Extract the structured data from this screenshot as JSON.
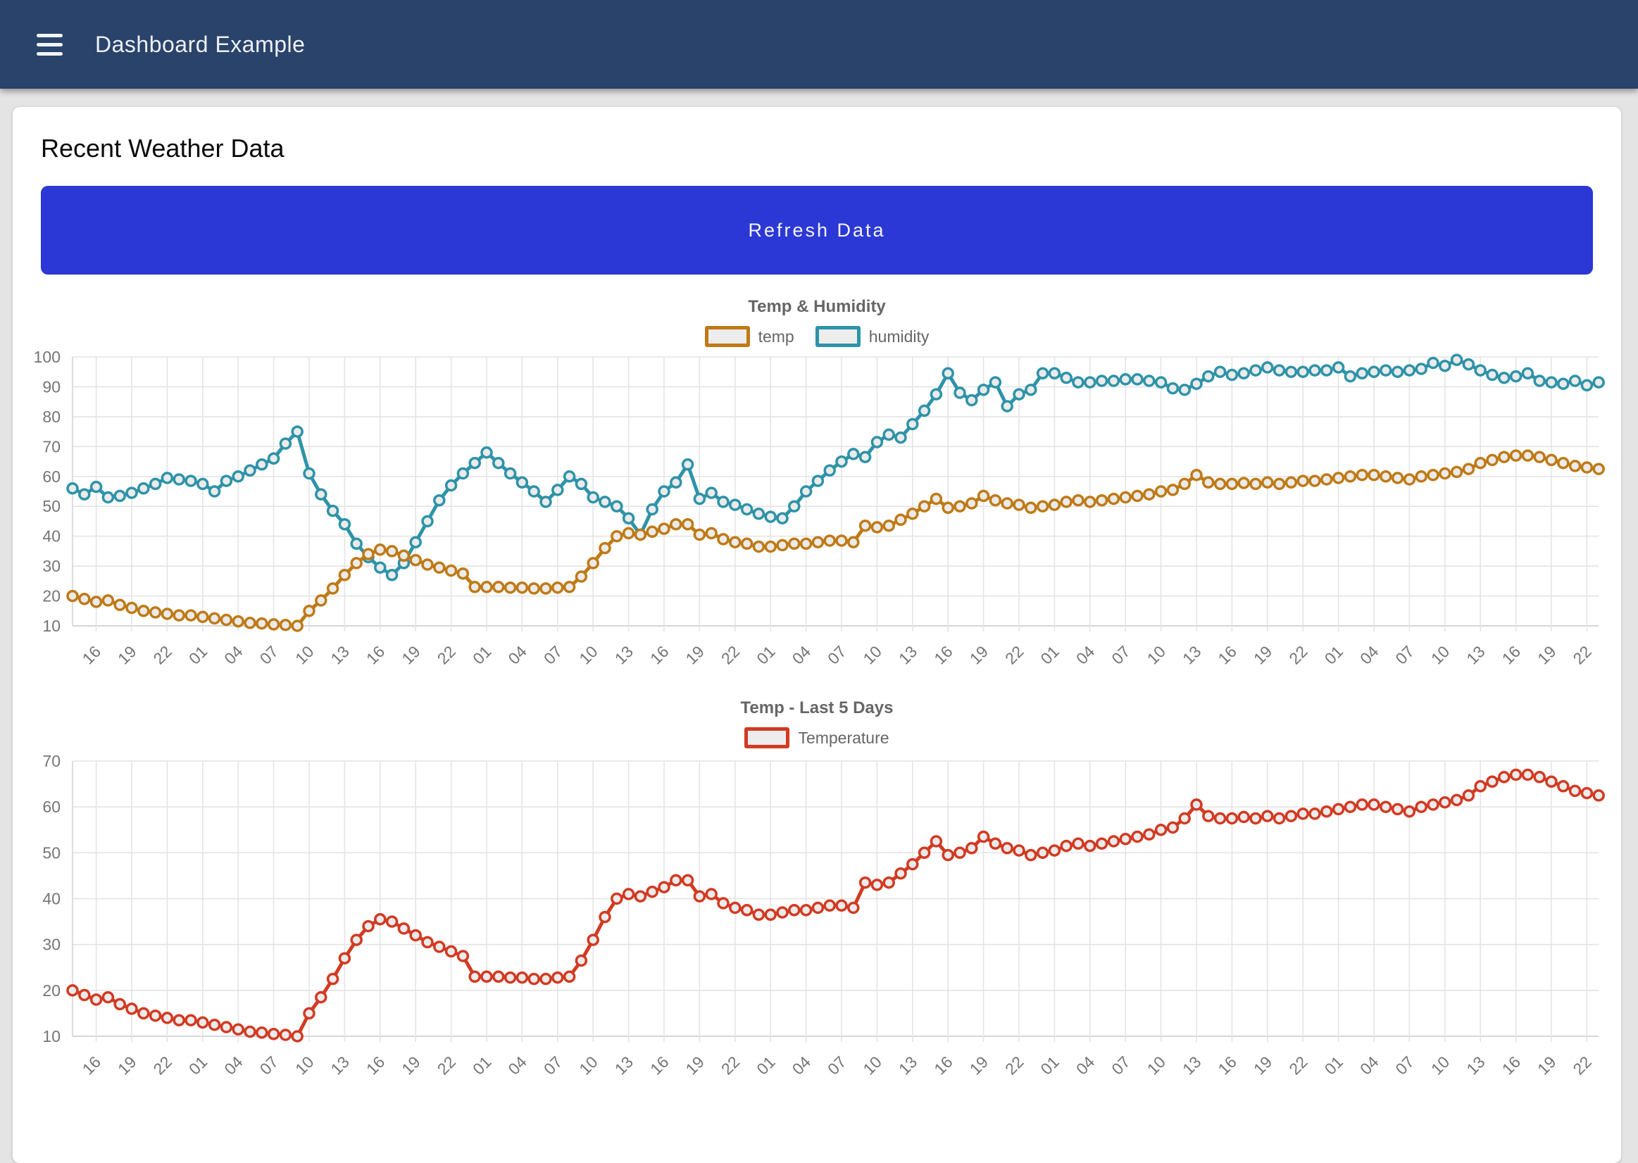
{
  "header": {
    "title": "Dashboard Example",
    "menu_icon": "hamburger-menu"
  },
  "main": {
    "heading": "Recent Weather Data",
    "refresh_button_label": "Refresh Data"
  },
  "colors": {
    "header_bg": "#2A436A",
    "page_bg": "#E4E4E4",
    "button_bg": "#2B38D5",
    "temp_series": "#BF7A16",
    "humidity_series": "#2E93A8",
    "temperature_series": "#D23A22",
    "grid": "#E4E4E4",
    "axis_text": "#757575",
    "title_text": "#666666",
    "point_fill": "#EBEBEB"
  },
  "chart_data": [
    {
      "type": "line",
      "title": "Temp & Humidity",
      "legend_position": "top",
      "grid": true,
      "ylim": [
        10,
        100
      ],
      "yticks": [
        10,
        20,
        30,
        40,
        50,
        60,
        70,
        80,
        90,
        100
      ],
      "xtick_every": 3,
      "xtick_start_index": 2,
      "categories": [
        "14",
        "15",
        "16",
        "17",
        "18",
        "19",
        "20",
        "21",
        "22",
        "23",
        "00",
        "01",
        "02",
        "03",
        "04",
        "05",
        "06",
        "07",
        "08",
        "09",
        "10",
        "11",
        "12",
        "13",
        "14",
        "15",
        "16",
        "17",
        "18",
        "19",
        "20",
        "21",
        "22",
        "23",
        "00",
        "01",
        "02",
        "03",
        "04",
        "05",
        "06",
        "07",
        "08",
        "09",
        "10",
        "11",
        "12",
        "13",
        "14",
        "15",
        "16",
        "17",
        "18",
        "19",
        "20",
        "21",
        "22",
        "23",
        "00",
        "01",
        "02",
        "03",
        "04",
        "05",
        "06",
        "07",
        "08",
        "09",
        "10",
        "11",
        "12",
        "13",
        "14",
        "15",
        "16",
        "17",
        "18",
        "19",
        "20",
        "21",
        "22",
        "23",
        "00",
        "01",
        "02",
        "03",
        "04",
        "05",
        "06",
        "07",
        "08",
        "09",
        "10",
        "11",
        "12",
        "13",
        "14",
        "15",
        "16",
        "17",
        "18",
        "19",
        "20",
        "21",
        "22",
        "23",
        "00",
        "01",
        "02",
        "03",
        "04",
        "05",
        "06",
        "07",
        "08",
        "09",
        "10",
        "11",
        "12",
        "13",
        "14",
        "15",
        "16",
        "17",
        "18",
        "19",
        "20",
        "21",
        "22",
        "23"
      ],
      "series": [
        {
          "name": "temp",
          "color": "#BF7A16",
          "values": [
            20,
            19,
            18,
            18.5,
            17,
            16,
            15,
            14.5,
            14,
            13.5,
            13.5,
            13,
            12.5,
            12,
            11.5,
            11,
            10.8,
            10.5,
            10.3,
            10,
            15,
            18.5,
            22.5,
            27,
            31,
            34,
            35.5,
            35,
            33.5,
            32,
            30.5,
            29.5,
            28.5,
            27.5,
            23,
            23,
            23,
            22.8,
            22.8,
            22.5,
            22.5,
            22.8,
            23,
            26.5,
            31,
            36,
            40,
            41,
            40.5,
            41.5,
            42.5,
            44,
            44,
            40.5,
            41,
            39,
            38,
            37.5,
            36.5,
            36.5,
            37,
            37.5,
            37.5,
            38,
            38.5,
            38.5,
            38,
            43.5,
            43,
            43.5,
            45.5,
            47.5,
            50,
            52.5,
            49.5,
            50,
            51,
            53.5,
            52,
            51,
            50.5,
            49.5,
            50,
            50.5,
            51.5,
            52,
            51.5,
            52,
            52.5,
            53,
            53.5,
            54,
            55,
            55.5,
            57.5,
            60.5,
            58,
            57.5,
            57.5,
            57.8,
            57.5,
            58,
            57.5,
            58,
            58.5,
            58.5,
            59,
            59.5,
            60,
            60.5,
            60.5,
            60,
            59.5,
            59,
            60,
            60.5,
            61,
            61.5,
            62.5,
            64.5,
            65.5,
            66.5,
            67,
            67,
            66.5,
            65.5,
            64.5,
            63.5,
            63,
            62.5
          ]
        },
        {
          "name": "humidity",
          "color": "#2E93A8",
          "values": [
            56,
            54,
            56.5,
            53,
            53.5,
            54.5,
            56,
            57.5,
            59.5,
            59,
            58.5,
            57.5,
            55,
            58.5,
            60,
            62,
            64,
            66,
            71,
            75,
            61,
            54,
            48.5,
            44,
            37.5,
            33,
            29.5,
            27,
            31,
            38,
            45,
            52,
            57,
            61,
            64.5,
            68,
            64.5,
            61,
            58,
            55,
            51.5,
            55.5,
            60,
            57.5,
            53,
            51.5,
            50,
            46,
            40.5,
            49,
            55,
            58,
            64,
            52.5,
            54.5,
            51.5,
            50.5,
            49,
            47.5,
            46.5,
            46,
            50,
            55,
            58.5,
            62,
            65,
            67.5,
            66.5,
            71.5,
            74,
            73,
            77.5,
            82,
            87.5,
            94.5,
            88,
            85.5,
            89,
            91.5,
            83.5,
            87.5,
            89,
            94.5,
            94.5,
            93,
            91.5,
            91.5,
            92,
            92,
            92.5,
            92.5,
            92,
            91.5,
            89.5,
            89,
            91,
            93.5,
            95,
            94,
            94.5,
            95.5,
            96.5,
            95.5,
            95,
            95,
            95.5,
            95.5,
            96.5,
            93.5,
            94.5,
            95,
            95.5,
            95,
            95.5,
            96,
            98,
            97,
            99,
            97.5,
            95.5,
            94,
            93,
            93.5,
            94.5,
            92,
            91.5,
            91,
            92,
            90.5,
            91.5
          ]
        }
      ]
    },
    {
      "type": "line",
      "title": "Temp - Last 5 Days",
      "legend_position": "top",
      "grid": true,
      "ylim": [
        10,
        70
      ],
      "yticks": [
        10,
        20,
        30,
        40,
        50,
        60,
        70
      ],
      "xtick_every": 3,
      "xtick_start_index": 2,
      "categories": [
        "14",
        "15",
        "16",
        "17",
        "18",
        "19",
        "20",
        "21",
        "22",
        "23",
        "00",
        "01",
        "02",
        "03",
        "04",
        "05",
        "06",
        "07",
        "08",
        "09",
        "10",
        "11",
        "12",
        "13",
        "14",
        "15",
        "16",
        "17",
        "18",
        "19",
        "20",
        "21",
        "22",
        "23",
        "00",
        "01",
        "02",
        "03",
        "04",
        "05",
        "06",
        "07",
        "08",
        "09",
        "10",
        "11",
        "12",
        "13",
        "14",
        "15",
        "16",
        "17",
        "18",
        "19",
        "20",
        "21",
        "22",
        "23",
        "00",
        "01",
        "02",
        "03",
        "04",
        "05",
        "06",
        "07",
        "08",
        "09",
        "10",
        "11",
        "12",
        "13",
        "14",
        "15",
        "16",
        "17",
        "18",
        "19",
        "20",
        "21",
        "22",
        "23",
        "00",
        "01",
        "02",
        "03",
        "04",
        "05",
        "06",
        "07",
        "08",
        "09",
        "10",
        "11",
        "12",
        "13",
        "14",
        "15",
        "16",
        "17",
        "18",
        "19",
        "20",
        "21",
        "22",
        "23",
        "00",
        "01",
        "02",
        "03",
        "04",
        "05",
        "06",
        "07",
        "08",
        "09",
        "10",
        "11",
        "12",
        "13",
        "14",
        "15",
        "16",
        "17",
        "18",
        "19",
        "20",
        "21",
        "22",
        "23"
      ],
      "series": [
        {
          "name": "Temperature",
          "color": "#D23A22",
          "values": [
            20,
            19,
            18,
            18.5,
            17,
            16,
            15,
            14.5,
            14,
            13.5,
            13.5,
            13,
            12.5,
            12,
            11.5,
            11,
            10.8,
            10.5,
            10.3,
            10,
            15,
            18.5,
            22.5,
            27,
            31,
            34,
            35.5,
            35,
            33.5,
            32,
            30.5,
            29.5,
            28.5,
            27.5,
            23,
            23,
            23,
            22.8,
            22.8,
            22.5,
            22.5,
            22.8,
            23,
            26.5,
            31,
            36,
            40,
            41,
            40.5,
            41.5,
            42.5,
            44,
            44,
            40.5,
            41,
            39,
            38,
            37.5,
            36.5,
            36.5,
            37,
            37.5,
            37.5,
            38,
            38.5,
            38.5,
            38,
            43.5,
            43,
            43.5,
            45.5,
            47.5,
            50,
            52.5,
            49.5,
            50,
            51,
            53.5,
            52,
            51,
            50.5,
            49.5,
            50,
            50.5,
            51.5,
            52,
            51.5,
            52,
            52.5,
            53,
            53.5,
            54,
            55,
            55.5,
            57.5,
            60.5,
            58,
            57.5,
            57.5,
            57.8,
            57.5,
            58,
            57.5,
            58,
            58.5,
            58.5,
            59,
            59.5,
            60,
            60.5,
            60.5,
            60,
            59.5,
            59,
            60,
            60.5,
            61,
            61.5,
            62.5,
            64.5,
            65.5,
            66.5,
            67,
            67,
            66.5,
            65.5,
            64.5,
            63.5,
            63,
            62.5
          ]
        }
      ]
    }
  ]
}
